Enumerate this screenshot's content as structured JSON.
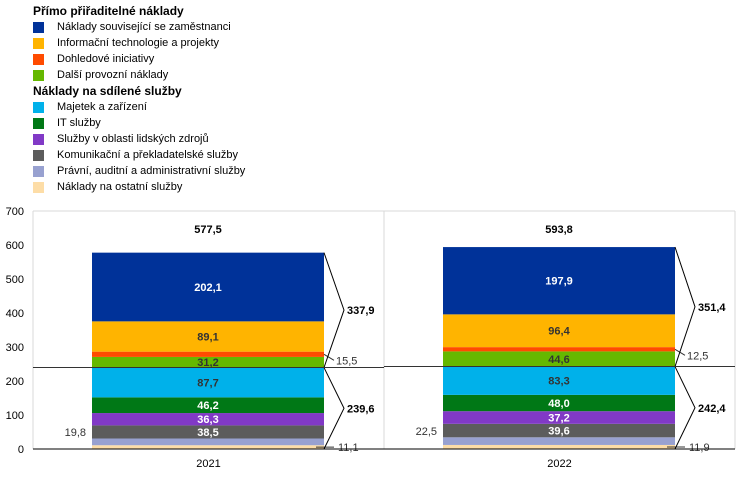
{
  "legend": {
    "direct_heading": "Přímo přiřaditelné náklady",
    "shared_heading": "Náklady na sdílené služby",
    "direct_items": [
      {
        "label": "Náklady související se zaměstnanci",
        "color": "#003299"
      },
      {
        "label": "Informační technologie a projekty",
        "color": "#FFB400"
      },
      {
        "label": "Dohledové iniciativy",
        "color": "#FF4B00"
      },
      {
        "label": "Další provozní náklady",
        "color": "#65B800"
      }
    ],
    "shared_items": [
      {
        "label": "Majetek a zařízení",
        "color": "#00B1EA"
      },
      {
        "label": "IT služby",
        "color": "#007816"
      },
      {
        "label": "Služby v oblasti lidských zdrojů",
        "color": "#8139C6"
      },
      {
        "label": "Komunikační a překladatelské služby",
        "color": "#5C5C5C"
      },
      {
        "label": "Právní, auditní a administrativní služby",
        "color": "#98A1D0"
      },
      {
        "label": "Náklady na ostatní služby",
        "color": "#FDDDA7"
      }
    ]
  },
  "chart_data": {
    "type": "bar",
    "stacked": true,
    "ylim": [
      0,
      700
    ],
    "yticks": [
      "0",
      "100",
      "200",
      "300",
      "400",
      "500",
      "600",
      "700"
    ],
    "categories": [
      "2021",
      "2022"
    ],
    "series": [
      {
        "name": "Náklady na ostatní služby",
        "values": [
          11.1,
          11.9
        ],
        "labels": [
          "11,1",
          "11,9"
        ],
        "color": "#FDDDA7"
      },
      {
        "name": "Právní, auditní a administrativní služby",
        "values": [
          19.8,
          22.5
        ],
        "labels": [
          "19,8",
          "22,5"
        ],
        "color": "#98A1D0"
      },
      {
        "name": "Komunikační a překladatelské služby",
        "values": [
          38.5,
          39.6
        ],
        "labels": [
          "38,5",
          "39,6"
        ],
        "color": "#5C5C5C"
      },
      {
        "name": "Služby v oblasti lidských zdrojů",
        "values": [
          36.3,
          37.2
        ],
        "labels": [
          "36,3",
          "37,2"
        ],
        "color": "#8139C6"
      },
      {
        "name": "IT služby",
        "values": [
          46.2,
          48.0
        ],
        "labels": [
          "46,2",
          "48,0"
        ],
        "color": "#007816"
      },
      {
        "name": "Majetek a zařízení",
        "values": [
          87.7,
          83.3
        ],
        "labels": [
          "87,7",
          "83,3"
        ],
        "color": "#00B1EA"
      },
      {
        "name": "Další provozní náklady",
        "values": [
          31.2,
          44.6
        ],
        "labels": [
          "31,2",
          "44,6"
        ],
        "color": "#65B800"
      },
      {
        "name": "Dohledové iniciativy",
        "values": [
          15.5,
          12.5
        ],
        "labels": [
          "15,5",
          "12,5"
        ],
        "color": "#FF4B00"
      },
      {
        "name": "Informační technologie a projekty",
        "values": [
          89.1,
          96.4
        ],
        "labels": [
          "89,1",
          "96,4"
        ],
        "color": "#FFB400"
      },
      {
        "name": "Náklady související se zaměstnanci",
        "values": [
          202.1,
          197.9
        ],
        "labels": [
          "202,1",
          "197,9"
        ],
        "color": "#003299"
      }
    ],
    "totals": [
      "577,5",
      "593,8"
    ],
    "shared_subtotals": [
      "239,6",
      "242,4"
    ],
    "direct_subtotals": [
      "337,9",
      "351,4"
    ]
  }
}
